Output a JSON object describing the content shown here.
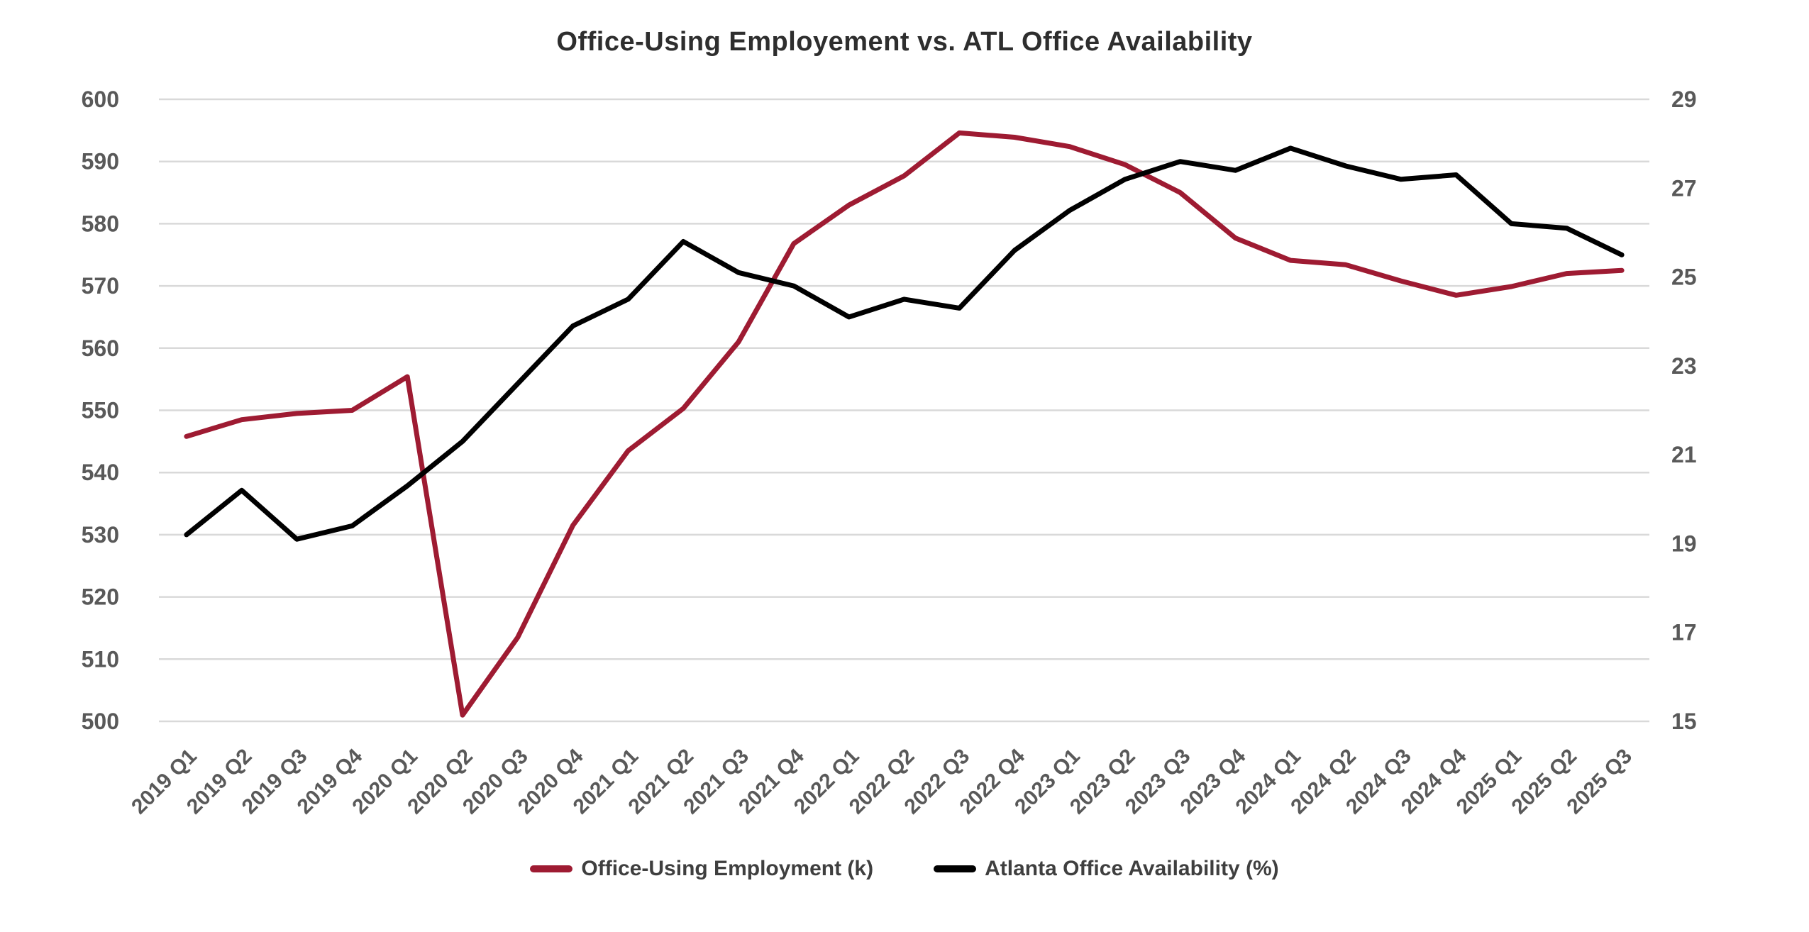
{
  "title": "Office-Using Employement vs. ATL Office Availability",
  "styles": {
    "background": "#FFFFFF",
    "grid_color": "#D9D9D9",
    "tick_label_color": "#595959",
    "title_color": "#2E2E2E",
    "legend_text_color": "#3F3F3F",
    "employment_color": "#9E1B32",
    "availability_color": "#000000"
  },
  "chart_data": {
    "type": "line",
    "title": "Office-Using Employement vs. ATL Office Availability",
    "grid": "horizontal-only",
    "legend_position": "bottom-center",
    "categories": [
      "2019 Q1",
      "2019 Q2",
      "2019 Q3",
      "2019 Q4",
      "2020 Q1",
      "2020 Q2",
      "2020 Q3",
      "2020 Q4",
      "2021 Q1",
      "2021 Q2",
      "2021 Q3",
      "2021 Q4",
      "2022 Q1",
      "2022 Q2",
      "2022 Q3",
      "2022 Q4",
      "2023 Q1",
      "2023 Q2",
      "2023 Q3",
      "2023 Q4",
      "2024 Q1",
      "2024 Q2",
      "2024 Q3",
      "2024 Q4",
      "2025 Q1",
      "2025 Q2",
      "2025 Q3"
    ],
    "axes": {
      "left": {
        "min": 500,
        "max": 600,
        "step": 10,
        "ticks": [
          600,
          590,
          580,
          570,
          560,
          550,
          540,
          530,
          520,
          510,
          500
        ]
      },
      "right": {
        "min": 15,
        "max": 29,
        "step": 2,
        "ticks": [
          29,
          27,
          25,
          23,
          21,
          19,
          17,
          15
        ]
      }
    },
    "series": [
      {
        "name": "Office-Using Employment (k)",
        "axis": "left",
        "color": "#9E1B32",
        "values": [
          545.8,
          548.5,
          549.5,
          550.0,
          555.4,
          501.0,
          513.5,
          531.5,
          543.5,
          550.3,
          561.0,
          576.8,
          583.0,
          587.7,
          594.6,
          593.9,
          592.4,
          589.5,
          585.0,
          577.7,
          574.1,
          573.4,
          570.8,
          568.5,
          569.9,
          572.0,
          572.5
        ]
      },
      {
        "name": "Atlanta Office Availability (%)",
        "axis": "right",
        "color": "#000000",
        "values": [
          19.2,
          20.2,
          19.1,
          19.4,
          20.3,
          21.3,
          22.6,
          23.9,
          24.5,
          25.8,
          25.1,
          24.8,
          24.1,
          24.5,
          24.3,
          25.6,
          26.5,
          27.2,
          27.6,
          27.4,
          27.9,
          27.5,
          27.2,
          27.3,
          26.2,
          26.1,
          25.5
        ]
      }
    ]
  }
}
